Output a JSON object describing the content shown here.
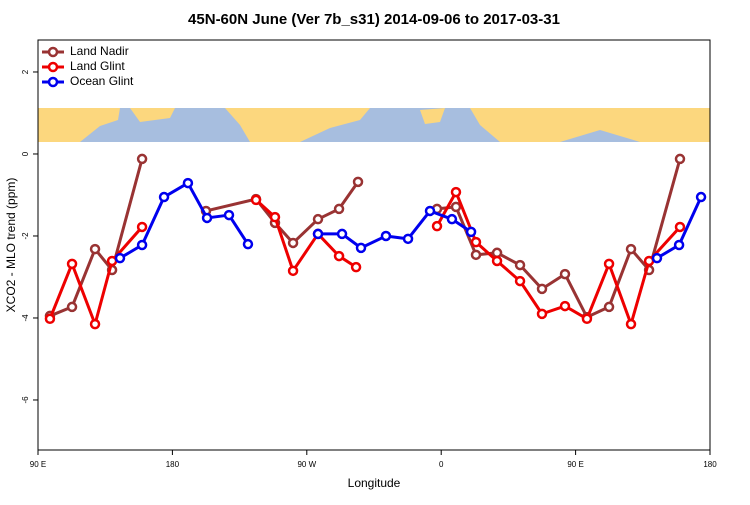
{
  "chart_data": {
    "type": "line",
    "title": "45N-60N June (Ver 7b_s31)   2014-09-06 to 2017-03-31",
    "x_label": "Longitude",
    "y_label": "XCO2 - MLO trend (ppm)",
    "xlim": [
      90,
      540
    ],
    "ylim": [
      -7.22,
      2.78
    ],
    "xticks": [
      {
        "value": 90,
        "label": "90 E"
      },
      {
        "value": 180,
        "label": "180"
      },
      {
        "value": 270,
        "label": "90 W"
      },
      {
        "value": 360,
        "label": "0"
      },
      {
        "value": 450,
        "label": "90 E"
      },
      {
        "value": 540,
        "label": "180"
      }
    ],
    "yticks": [
      -6,
      -4,
      -2,
      0,
      2
    ],
    "legend": "top-left",
    "series": [
      {
        "name": "Land Nadir",
        "color": "#993333",
        "x": [
          98.0,
          112.8,
          128.2,
          139.6,
          159.7,
          null,
          202.5,
          236.0,
          248.7,
          260.8,
          277.5,
          291.6,
          304.3,
          null,
          357.2,
          369.9,
          383.3,
          397.4,
          412.8,
          427.5,
          442.9,
          457.6,
          472.4,
          487.1,
          499.2,
          519.9
        ],
        "values": [
          -3.95,
          -3.73,
          -2.32,
          -2.83,
          -0.12,
          null,
          -1.39,
          -1.1,
          -1.68,
          -2.17,
          -1.59,
          -1.34,
          -0.68,
          null,
          -1.34,
          -1.29,
          -2.46,
          -2.41,
          -2.71,
          -3.29,
          -2.93,
          -3.98,
          -3.73,
          -2.32,
          -2.83,
          -0.12
        ]
      },
      {
        "name": "Land Glint",
        "color": "#ee0000",
        "x": [
          98.0,
          112.8,
          128.2,
          139.6,
          159.7,
          null,
          236.0,
          248.7,
          260.8,
          277.5,
          291.6,
          303.0,
          null,
          357.2,
          369.9,
          383.3,
          397.4,
          412.8,
          427.5,
          442.9,
          457.6,
          472.4,
          487.1,
          499.2,
          519.9
        ],
        "values": [
          -4.02,
          -2.68,
          -4.15,
          -2.61,
          -1.78,
          null,
          -1.12,
          -1.54,
          -2.85,
          -1.95,
          -2.49,
          -2.76,
          null,
          -1.76,
          -0.93,
          -2.15,
          -2.61,
          -3.1,
          -3.9,
          -3.71,
          -4.02,
          -2.68,
          -4.15,
          -2.61,
          -1.78
        ]
      },
      {
        "name": "Ocean Glint",
        "color": "#0000ee",
        "x": [
          144.9,
          159.7,
          174.4,
          190.4,
          203.2,
          217.9,
          230.6,
          null,
          277.5,
          293.6,
          306.3,
          323.0,
          337.8,
          352.5,
          367.2,
          380.0,
          null,
          504.5,
          519.3,
          534.0
        ],
        "values": [
          -2.54,
          -2.22,
          -1.05,
          -0.71,
          -1.56,
          -1.49,
          -2.2,
          null,
          -1.95,
          -1.95,
          -2.29,
          -2.0,
          -2.07,
          -1.39,
          -1.59,
          -1.9,
          null,
          -2.54,
          -2.22,
          -1.05
        ]
      }
    ]
  }
}
